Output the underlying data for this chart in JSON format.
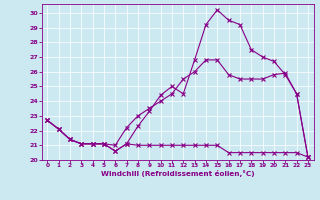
{
  "bg_color": "#cce8f0",
  "line_color": "#880088",
  "xlabel": "Windchill (Refroidissement éolien,°C)",
  "xlim_min": -0.5,
  "xlim_max": 23.5,
  "ylim_min": 20,
  "ylim_max": 30.6,
  "xticks": [
    0,
    1,
    2,
    3,
    4,
    5,
    6,
    7,
    8,
    9,
    10,
    11,
    12,
    13,
    14,
    15,
    16,
    17,
    18,
    19,
    20,
    21,
    22,
    23
  ],
  "yticks": [
    20,
    21,
    22,
    23,
    24,
    25,
    26,
    27,
    28,
    29,
    30
  ],
  "series1_x": [
    0,
    1,
    2,
    3,
    4,
    5,
    6,
    7,
    8,
    9,
    10,
    11,
    12,
    13,
    14,
    15,
    16,
    17,
    18,
    19,
    20,
    21,
    22,
    23
  ],
  "series1_y": [
    22.7,
    22.1,
    21.4,
    21.1,
    21.1,
    21.1,
    20.6,
    21.1,
    21.0,
    21.0,
    21.0,
    21.0,
    21.0,
    21.0,
    21.0,
    21.0,
    20.5,
    20.5,
    20.5,
    20.5,
    20.5,
    20.5,
    20.5,
    20.2
  ],
  "series2_x": [
    0,
    1,
    2,
    3,
    4,
    5,
    6,
    7,
    8,
    9,
    10,
    11,
    12,
    13,
    14,
    15,
    16,
    17,
    18,
    19,
    20,
    21,
    22,
    23
  ],
  "series2_y": [
    22.7,
    22.1,
    21.4,
    21.1,
    21.1,
    21.1,
    21.0,
    22.2,
    23.0,
    23.5,
    24.0,
    24.5,
    25.5,
    26.0,
    26.8,
    26.8,
    25.8,
    25.5,
    25.5,
    25.5,
    25.8,
    25.9,
    24.5,
    20.2
  ],
  "series3_x": [
    0,
    1,
    2,
    3,
    4,
    5,
    6,
    7,
    8,
    9,
    10,
    11,
    12,
    13,
    14,
    15,
    16,
    17,
    18,
    19,
    20,
    21,
    22,
    23
  ],
  "series3_y": [
    22.7,
    22.1,
    21.4,
    21.1,
    21.1,
    21.1,
    20.6,
    21.1,
    22.3,
    23.3,
    24.4,
    25.0,
    24.5,
    26.8,
    29.2,
    30.2,
    29.5,
    29.2,
    27.5,
    27.0,
    26.7,
    25.8,
    24.5,
    20.2
  ]
}
